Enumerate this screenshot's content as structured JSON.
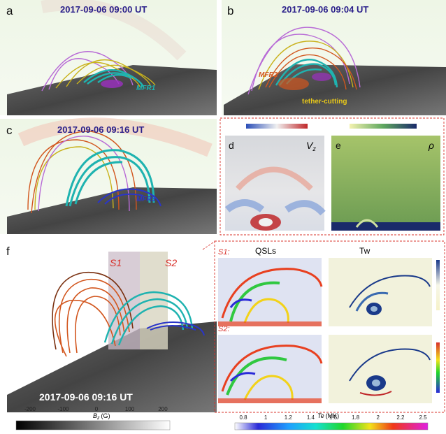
{
  "panels": {
    "a": {
      "label": "a",
      "time": "2017-09-06 09:00 UT",
      "annotation": "MFR1"
    },
    "b": {
      "label": "b",
      "time": "2017-09-06 09:04 UT",
      "annotation_1": "MFR2",
      "annotation_2": "tether-cutting"
    },
    "c": {
      "label": "c",
      "time": "2017-09-06 09:16 UT",
      "annotation": "MFR3"
    },
    "d": {
      "label": "d",
      "quantity": "V",
      "quantity_sub": "z"
    },
    "e": {
      "label": "e",
      "quantity": "ρ"
    },
    "f": {
      "label": "f",
      "time": "2017-09-06 09:16 UT",
      "slice_1": "S1",
      "slice_2": "S2"
    }
  },
  "slices": {
    "col_1": "QSLs",
    "col_2": "Tw",
    "row_1": "S1:",
    "row_2": "S2:"
  },
  "bz_colorbar": {
    "label_main": "B",
    "label_sub": "z",
    "label_unit": "(G)",
    "ticks": [
      "-200",
      "-100",
      "0",
      "100",
      "200"
    ],
    "colors": {
      "low": "#000000",
      "high": "#ffffff"
    }
  },
  "te_colorbar": {
    "label_main": "Te",
    "label_unit": "(MK)",
    "ticks": [
      "0.8",
      "1",
      "1.2",
      "1.4",
      "1.6",
      "1.8",
      "2",
      "2.2",
      "2.5"
    ]
  },
  "colors": {
    "mfr_cyan": "#1fb3b0",
    "loops_orange": "#d2561e",
    "loops_yellow": "#c9b21c",
    "loops_purple": "#b86bd6",
    "mfr3_blue": "#2a35c8",
    "dashed_box": "#d8302a"
  }
}
